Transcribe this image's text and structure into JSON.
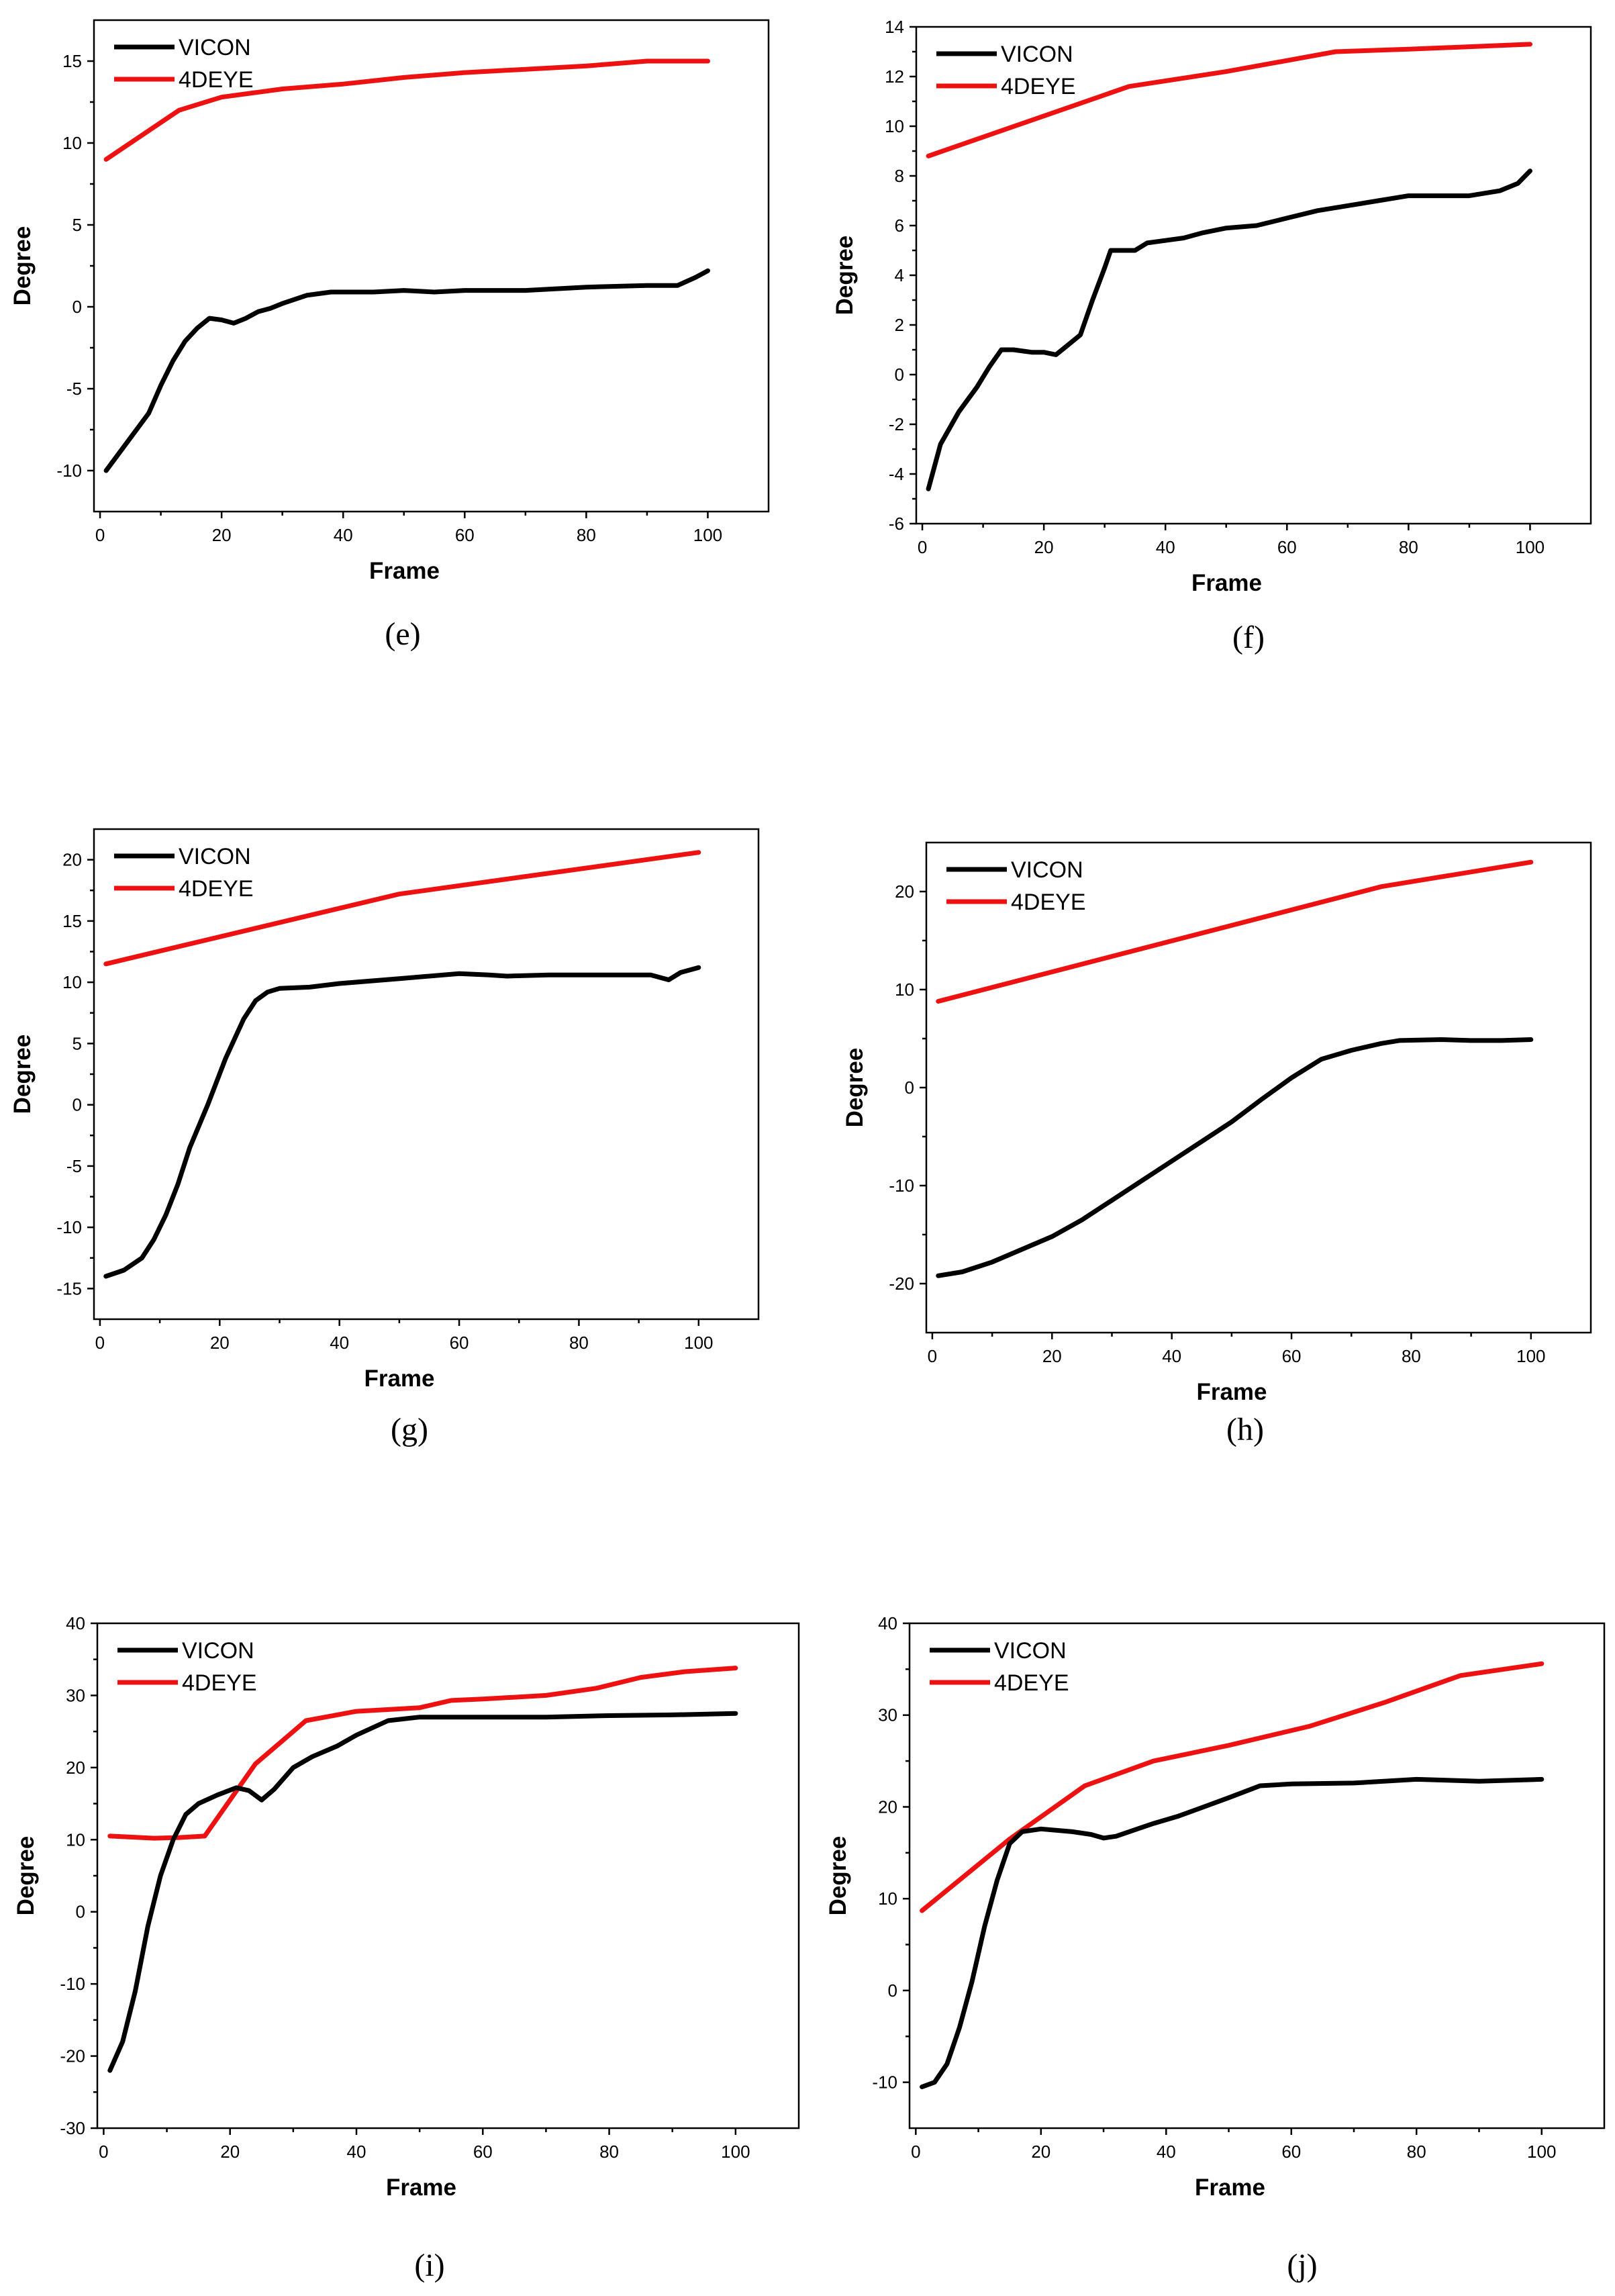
{
  "figure": {
    "legend": [
      "VICON",
      "4DEYE"
    ],
    "colors": {
      "VICON": "#000000",
      "4DEYE": "#ee1111"
    }
  },
  "chart_data": [
    {
      "panel": "e",
      "caption": "(e)",
      "type": "line",
      "xlabel": "Frame",
      "ylabel": "Degree",
      "xlim": [
        -1,
        110
      ],
      "ylim": [
        -12.5,
        17.5
      ],
      "xticks": [
        0,
        20,
        40,
        60,
        80,
        100
      ],
      "yticks": [
        -10,
        -5,
        0,
        5,
        10,
        15
      ],
      "legend_position": "top-left",
      "series": [
        {
          "name": "VICON",
          "x": [
            1,
            4,
            8,
            10,
            12,
            14,
            16,
            18,
            20,
            22,
            24,
            26,
            28,
            30,
            34,
            38,
            45,
            50,
            55,
            60,
            70,
            80,
            90,
            95,
            98,
            100
          ],
          "y": [
            -10,
            -8.5,
            -6.5,
            -4.8,
            -3.3,
            -2.1,
            -1.3,
            -0.7,
            -0.8,
            -1.0,
            -0.7,
            -0.3,
            -0.1,
            0.2,
            0.7,
            0.9,
            0.9,
            1.0,
            0.9,
            1.0,
            1.0,
            1.2,
            1.3,
            1.3,
            1.8,
            2.2
          ]
        },
        {
          "name": "4DEYE",
          "x": [
            1,
            13,
            20,
            30,
            40,
            50,
            60,
            70,
            80,
            90,
            100
          ],
          "y": [
            9,
            12,
            12.8,
            13.3,
            13.6,
            14,
            14.3,
            14.5,
            14.7,
            15,
            15
          ]
        }
      ]
    },
    {
      "panel": "f",
      "caption": "(f)",
      "type": "line",
      "xlabel": "Frame",
      "ylabel": "Degree",
      "xlim": [
        -1,
        110
      ],
      "ylim": [
        -6,
        14
      ],
      "xticks": [
        0,
        20,
        40,
        60,
        80,
        100
      ],
      "yticks": [
        -6,
        -4,
        -2,
        0,
        2,
        4,
        6,
        8,
        10,
        12,
        14
      ],
      "legend_position": "top-left",
      "series": [
        {
          "name": "VICON",
          "x": [
            1,
            3,
            6,
            9,
            11,
            13,
            15,
            18,
            20,
            22,
            24,
            26,
            28,
            30,
            31,
            33,
            35,
            37,
            40,
            43,
            46,
            50,
            55,
            60,
            65,
            70,
            75,
            80,
            85,
            90,
            95,
            98,
            100
          ],
          "y": [
            -4.6,
            -2.8,
            -1.5,
            -0.5,
            0.3,
            1.0,
            1.0,
            0.9,
            0.9,
            0.8,
            1.2,
            1.6,
            3.0,
            4.3,
            5.0,
            5.0,
            5.0,
            5.3,
            5.4,
            5.5,
            5.7,
            5.9,
            6.0,
            6.3,
            6.6,
            6.8,
            7.0,
            7.2,
            7.2,
            7.2,
            7.4,
            7.7,
            8.2
          ]
        },
        {
          "name": "4DEYE",
          "x": [
            1,
            34,
            50,
            68,
            80,
            90,
            100
          ],
          "y": [
            8.8,
            11.6,
            12.2,
            13.0,
            13.1,
            13.2,
            13.3
          ]
        }
      ]
    },
    {
      "panel": "g",
      "caption": "(g)",
      "type": "line",
      "xlabel": "Frame",
      "ylabel": "Degree",
      "xlim": [
        -1,
        110
      ],
      "ylim": [
        -17.5,
        22.5
      ],
      "xticks": [
        0,
        20,
        40,
        60,
        80,
        100
      ],
      "yticks": [
        -15,
        -10,
        -5,
        0,
        5,
        10,
        15,
        20
      ],
      "legend_position": "top-left",
      "series": [
        {
          "name": "VICON",
          "x": [
            1,
            4,
            7,
            9,
            11,
            13,
            15,
            18,
            21,
            24,
            26,
            28,
            30,
            35,
            40,
            50,
            60,
            65,
            68,
            75,
            85,
            92,
            95,
            97,
            100
          ],
          "y": [
            -14,
            -13.5,
            -12.5,
            -11.0,
            -9,
            -6.5,
            -3.5,
            0,
            3.8,
            7,
            8.5,
            9.2,
            9.5,
            9.6,
            9.9,
            10.3,
            10.7,
            10.6,
            10.5,
            10.6,
            10.6,
            10.6,
            10.2,
            10.8,
            11.2
          ]
        },
        {
          "name": "4DEYE",
          "x": [
            1,
            50,
            100
          ],
          "y": [
            11.5,
            17.2,
            20.6
          ]
        }
      ]
    },
    {
      "panel": "h",
      "caption": "(h)",
      "type": "line",
      "xlabel": "Frame",
      "ylabel": "Degree",
      "xlim": [
        -1,
        110
      ],
      "ylim": [
        -25,
        25
      ],
      "xticks": [
        0,
        20,
        40,
        60,
        80,
        100
      ],
      "yticks": [
        -20,
        -10,
        0,
        10,
        20
      ],
      "legend_position": "top-left",
      "series": [
        {
          "name": "VICON",
          "x": [
            1,
            5,
            10,
            15,
            20,
            25,
            30,
            35,
            40,
            45,
            50,
            55,
            60,
            65,
            70,
            75,
            78,
            85,
            90,
            95,
            100
          ],
          "y": [
            -19.2,
            -18.8,
            -17.8,
            -16.5,
            -15.2,
            -13.5,
            -11.5,
            -9.5,
            -7.5,
            -5.5,
            -3.5,
            -1.2,
            1,
            2.9,
            3.8,
            4.5,
            4.8,
            4.9,
            4.8,
            4.8,
            4.9
          ]
        },
        {
          "name": "4DEYE",
          "x": [
            1,
            75,
            100
          ],
          "y": [
            8.8,
            20.5,
            23
          ]
        }
      ]
    },
    {
      "panel": "i",
      "caption": "(i)",
      "type": "line",
      "xlabel": "Frame",
      "ylabel": "Degree",
      "xlim": [
        -1,
        110
      ],
      "ylim": [
        -30,
        40
      ],
      "xticks": [
        0,
        20,
        40,
        60,
        80,
        100
      ],
      "yticks": [
        -30,
        -20,
        -10,
        0,
        10,
        20,
        30,
        40
      ],
      "legend_position": "top-left",
      "series": [
        {
          "name": "VICON",
          "x": [
            1,
            3,
            5,
            7,
            9,
            11,
            13,
            15,
            18,
            21,
            23,
            25,
            27,
            30,
            33,
            37,
            40,
            45,
            50,
            60,
            70,
            80,
            90,
            100
          ],
          "y": [
            -22,
            -18,
            -11,
            -2,
            5,
            10,
            13.5,
            15,
            16.2,
            17.2,
            16.8,
            15.5,
            17,
            20,
            21.5,
            23,
            24.5,
            26.5,
            27,
            27,
            27,
            27.2,
            27.3,
            27.5
          ]
        },
        {
          "name": "4DEYE",
          "x": [
            1,
            8,
            12,
            16,
            20,
            24,
            28,
            32,
            40,
            50,
            55,
            60,
            70,
            78,
            85,
            92,
            100
          ],
          "y": [
            10.5,
            10.2,
            10.3,
            10.5,
            15.5,
            20.5,
            23.5,
            26.5,
            27.8,
            28.3,
            29.3,
            29.5,
            30,
            31,
            32.5,
            33.3,
            33.8
          ]
        }
      ]
    },
    {
      "panel": "j",
      "caption": "(j)",
      "type": "line",
      "xlabel": "Frame",
      "ylabel": "Degree",
      "xlim": [
        -1,
        110
      ],
      "ylim": [
        -15,
        40
      ],
      "xticks": [
        0,
        20,
        40,
        60,
        80,
        100
      ],
      "yticks": [
        -10,
        0,
        10,
        20,
        30,
        40
      ],
      "legend_position": "top-left",
      "series": [
        {
          "name": "VICON",
          "x": [
            1,
            3,
            5,
            7,
            9,
            11,
            13,
            15,
            17,
            20,
            25,
            28,
            30,
            32,
            35,
            38,
            42,
            46,
            50,
            55,
            60,
            70,
            80,
            90,
            100
          ],
          "y": [
            -10.5,
            -10,
            -8,
            -4,
            1,
            7,
            12,
            16,
            17.3,
            17.6,
            17.3,
            17,
            16.6,
            16.8,
            17.5,
            18.2,
            19,
            20,
            21,
            22.3,
            22.5,
            22.6,
            23,
            22.8,
            23
          ]
        },
        {
          "name": "4DEYE",
          "x": [
            1,
            15,
            27,
            38,
            50,
            63,
            75,
            87,
            100
          ],
          "y": [
            8.7,
            16.5,
            22.3,
            25,
            26.7,
            28.8,
            31.4,
            34.3,
            35.6
          ]
        }
      ]
    }
  ]
}
